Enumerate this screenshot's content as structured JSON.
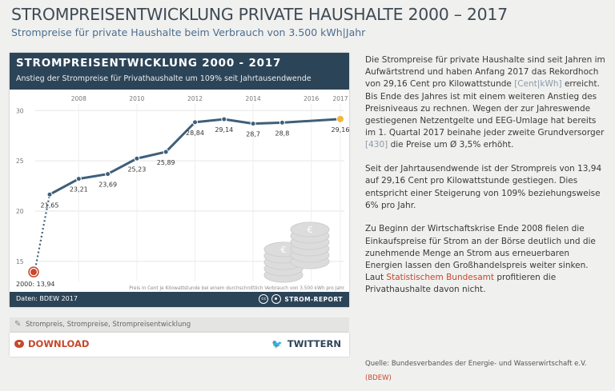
{
  "page": {
    "title": "STROMPREISENTWICKLUNG PRIVATE HAUSHALTE 2000 – 2017",
    "subtitle": "Strompreise für private Haushalte beim Verbrauch von 3.500 kWh|Jahr"
  },
  "card": {
    "title": "STROMPREISENTWICKLUNG 2000 - 2017",
    "subtitle": "Anstieg der Strompreise für Privathaushalte um 109% seit Jahrtausendwende",
    "note": "Preis in Cent je Kilowattstunde bei einem durchschnittlich Verbrauch von 3.500 kWh pro Jahr",
    "footer_source": "Daten: BDEW 2017",
    "cc_label": "cc",
    "brand": "STROM-REPORT"
  },
  "tags": {
    "icon": "tag-icon",
    "text": "Strompreis, Strompreise, Strompreisentwicklung"
  },
  "actions": {
    "download_label": "DOWNLOAD",
    "twitter_label": "TWITTERN",
    "twitter_glyph": "🐦"
  },
  "article": {
    "p1_a": "Die Strompreise für private Haushalte sind seit Jahren im Aufwärtstrend und haben Anfang 2017 das Rekordhoch von 29,16 Cent pro Kilowattstunde ",
    "p1_ref1": "[Cent|kWh]",
    "p1_b": " erreicht. Bis Ende des Jahres ist mit einem weiteren Anstieg des Preisniveaus zu rechnen. Wegen der zur Jahreswende gestiegenen Netzentgelte und EEG-Umlage hat bereits im 1. Quartal 2017 beinahe jeder zweite Grundversorger ",
    "p1_ref2": "[430]",
    "p1_c": " die Preise um Ø 3,5% erhöht.",
    "p2": "Seit der Jahrtausendwende ist der Strompreis von 13,94 auf 29,16 Cent pro Kilowattstunde gestiegen. Dies entspricht einer Steigerung von 109% beziehungsweise 6% pro Jahr.",
    "p3_a": "Zu Beginn der Wirtschaftskrise Ende 2008 fielen die Einkaufspreise für Strom an der Börse deutlich und die zunehmende Menge an Strom aus erneuerbaren Energien lassen den Großhandelspreis weiter sinken. Laut ",
    "p3_link": "Statistischem Bundesamt",
    "p3_b": " profitieren die Privathaushalte davon nicht.",
    "source_a": "Quelle: Bundesverbandes der Energie- und Wasserwirtschaft e.V. ",
    "source_link": "(BDEW)"
  },
  "colors": {
    "header": "#2c4457",
    "line": "#3f5f7a",
    "start_marker": "#c6482b",
    "end_marker": "#f2b736",
    "accent": "#c6482b"
  },
  "chart_data": {
    "type": "line",
    "x": [
      2000,
      2007,
      2008,
      2009,
      2010,
      2011,
      2012,
      2013,
      2014,
      2015,
      2016,
      2017
    ],
    "y": [
      13.94,
      21.65,
      23.21,
      23.69,
      25.23,
      25.89,
      28.84,
      29.14,
      28.7,
      28.8,
      29.16,
      29.16
    ],
    "labels": [
      "2000: 13,94",
      "21,65",
      "23,21",
      "23,69",
      "25,23",
      "25,89",
      "28,84",
      "29,14",
      "28,7",
      "28,8",
      "",
      "29,16"
    ],
    "xticks": [
      "2008",
      "2010",
      "2012",
      "2014",
      "2016",
      "2017"
    ],
    "xtick_positions": [
      2008,
      2010,
      2012,
      2014,
      2016,
      2017
    ],
    "yticks": [
      "15",
      "20",
      "25",
      "30"
    ],
    "ytick_values": [
      15,
      20,
      25,
      30
    ],
    "ylim": [
      13,
      30.5
    ],
    "dotted_segment": "2000-2007",
    "grid": "horizontal"
  }
}
